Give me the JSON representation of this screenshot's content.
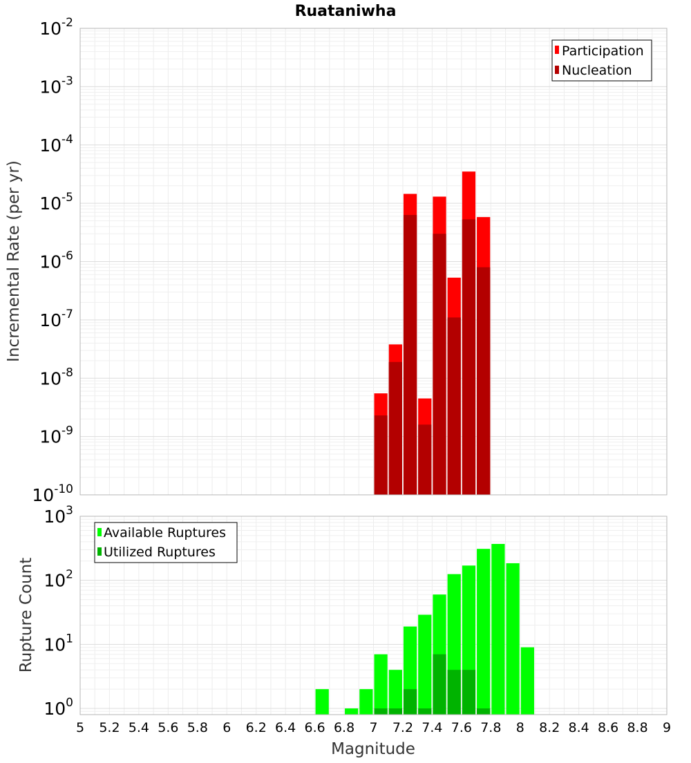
{
  "chart_data": [
    {
      "type": "bar",
      "title": "Ruataniwha",
      "ylabel": "Incremental Rate (per yr)",
      "xlabel": "",
      "xlim": [
        5,
        9
      ],
      "ylim": [
        1e-10,
        0.01
      ],
      "yscale": "log",
      "grid": true,
      "legend_position": "top-right",
      "series": [
        {
          "name": "Participation",
          "color": "#ff0000",
          "x": [
            7.05,
            7.15,
            7.25,
            7.35,
            7.45,
            7.55,
            7.65,
            7.75
          ],
          "values": [
            5.5e-09,
            3.8e-08,
            1.45e-05,
            4.5e-09,
            1.3e-05,
            5.3e-07,
            3.5e-05,
            5.8e-06
          ]
        },
        {
          "name": "Nucleation",
          "color": "#b30000",
          "x": [
            7.05,
            7.15,
            7.25,
            7.35,
            7.45,
            7.55,
            7.65,
            7.75
          ],
          "values": [
            2.3e-09,
            1.9e-08,
            6.3e-06,
            1.6e-09,
            3e-06,
            1.1e-07,
            5.3e-06,
            8e-07
          ]
        }
      ]
    },
    {
      "type": "bar",
      "title": "",
      "ylabel": "Rupture Count",
      "xlabel": "Magnitude",
      "xlim": [
        5,
        9
      ],
      "ylim": [
        0.8,
        1000
      ],
      "yscale": "log",
      "grid": true,
      "legend_position": "top-left",
      "x_ticks": [
        "5",
        "5.2",
        "5.4",
        "5.6",
        "5.8",
        "6",
        "6.2",
        "6.4",
        "6.6",
        "6.8",
        "7",
        "7.2",
        "7.4",
        "7.6",
        "7.8",
        "8",
        "8.2",
        "8.4",
        "8.6",
        "8.8",
        "9"
      ],
      "series": [
        {
          "name": "Available Ruptures",
          "color": "#00ff00",
          "x": [
            6.65,
            6.85,
            6.95,
            7.05,
            7.15,
            7.25,
            7.35,
            7.45,
            7.55,
            7.65,
            7.75,
            7.85,
            7.95,
            8.05
          ],
          "values": [
            2,
            1,
            2,
            7,
            4,
            19,
            29,
            60,
            125,
            170,
            310,
            370,
            185,
            9
          ]
        },
        {
          "name": "Utilized Ruptures",
          "color": "#00b300",
          "x": [
            7.05,
            7.15,
            7.25,
            7.35,
            7.45,
            7.55,
            7.65,
            7.75
          ],
          "values": [
            1,
            1,
            2,
            1,
            7,
            4,
            4,
            1
          ]
        }
      ]
    }
  ],
  "top_y_ticks": [
    {
      "base": "10",
      "exp": "-2"
    },
    {
      "base": "10",
      "exp": "-3"
    },
    {
      "base": "10",
      "exp": "-4"
    },
    {
      "base": "10",
      "exp": "-5"
    },
    {
      "base": "10",
      "exp": "-6"
    },
    {
      "base": "10",
      "exp": "-7"
    },
    {
      "base": "10",
      "exp": "-8"
    },
    {
      "base": "10",
      "exp": "-9"
    },
    {
      "base": "10",
      "exp": "-10"
    }
  ],
  "bottom_y_ticks": [
    {
      "base": "10",
      "exp": "3"
    },
    {
      "base": "10",
      "exp": "2"
    },
    {
      "base": "10",
      "exp": "1"
    },
    {
      "base": "10",
      "exp": "0"
    }
  ]
}
